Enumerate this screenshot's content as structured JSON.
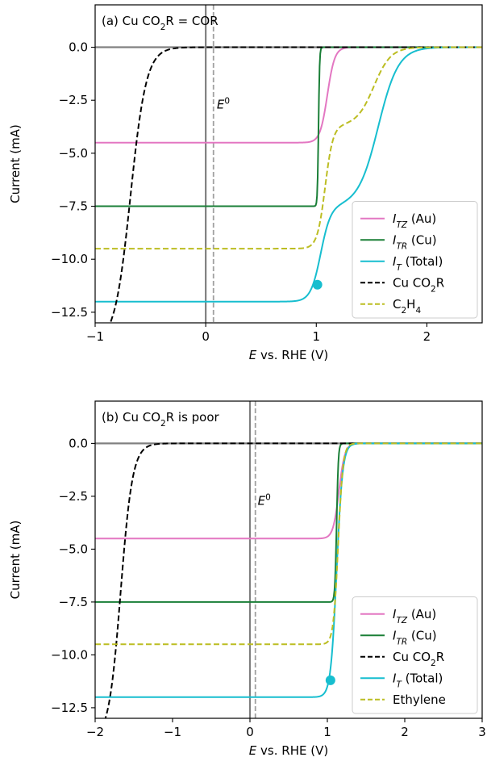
{
  "chart_data": [
    {
      "type": "line",
      "panel_label": "(a) Cu CO",
      "panel_label_sub": "2",
      "panel_label_tail": "R = COR",
      "xlabel_italic": "E",
      "xlabel_rest": " vs. RHE (V)",
      "ylabel": "Current (mA)",
      "xlim": [
        -1,
        2.5
      ],
      "ylim": [
        -13,
        2
      ],
      "xticks": [
        -1,
        0,
        1,
        2
      ],
      "xtick_labels": [
        "−1",
        "0",
        "1",
        "2"
      ],
      "yticks": [
        0.0,
        -2.5,
        -5.0,
        -7.5,
        -10.0,
        -12.5
      ],
      "ytick_labels": [
        "0.0",
        "−2.5",
        "−5.0",
        "−7.5",
        "−10.0",
        "−12.5"
      ],
      "e0_label": "E",
      "e0_sup": "0",
      "e0_x": 0.07,
      "e0_label_pos": [
        0.1,
        -2.9
      ],
      "grid": false,
      "legend_placement": "lower-right",
      "colors": {
        "tz": "#e377c2",
        "tr": "#1a7f37",
        "total": "#17becf",
        "cu": "#000000",
        "prod": "#bcbd22"
      },
      "series": [
        {
          "key": "tz",
          "name_italic": "I",
          "name_sub": "TZ",
          "name_tail": " (Au)",
          "dash": false,
          "lim": -4.5,
          "E": 1.1,
          "k": 30
        },
        {
          "key": "tr",
          "name_italic": "I",
          "name_sub": "TR",
          "name_tail": " (Cu)",
          "dash": false,
          "lim": -7.5,
          "E": 1.02,
          "k": 200
        },
        {
          "key": "total",
          "name_italic": "I",
          "name_sub": "T",
          "name_tail": " (Total)",
          "dash": false,
          "steps": [
            {
              "lim": -4.5,
              "E": 1.04,
              "k": 22
            },
            {
              "lim": -7.5,
              "E": 1.56,
              "k": 11
            }
          ]
        },
        {
          "key": "cu",
          "name_pre": "Cu CO",
          "name_sub2": "2",
          "name_tail": "R",
          "dash": true,
          "lim": -14,
          "E": -0.68,
          "k": 14
        },
        {
          "key": "prod",
          "name_pre": "C",
          "name_sub2": "2",
          "name_tail": "H",
          "name_sub3": "4",
          "dash": true,
          "steps": [
            {
              "lim": -5.8,
              "E": 1.08,
              "k": 28
            },
            {
              "lim": -3.7,
              "E": 1.52,
              "k": 13
            }
          ]
        }
      ],
      "legend_order": [
        "tz",
        "tr",
        "total",
        "cu",
        "prod"
      ],
      "marker": {
        "x": 1.01,
        "y": -11.2
      }
    },
    {
      "type": "line",
      "panel_label": "(b) Cu CO",
      "panel_label_sub": "2",
      "panel_label_tail": "R is poor",
      "xlabel_italic": "E",
      "xlabel_rest": " vs. RHE (V)",
      "ylabel": "Current (mA)",
      "xlim": [
        -2,
        3
      ],
      "ylim": [
        -13,
        2
      ],
      "xticks": [
        -2,
        -1,
        0,
        1,
        2,
        3
      ],
      "xtick_labels": [
        "−2",
        "−1",
        "0",
        "1",
        "2",
        "3"
      ],
      "yticks": [
        0.0,
        -2.5,
        -5.0,
        -7.5,
        -10.0,
        -12.5
      ],
      "ytick_labels": [
        "0.0",
        "−2.5",
        "−5.0",
        "−7.5",
        "−10.0",
        "−12.5"
      ],
      "e0_label": "E",
      "e0_sup": "0",
      "e0_x": 0.07,
      "e0_label_pos": [
        0.1,
        -2.9
      ],
      "grid": false,
      "legend_placement": "lower-right",
      "colors": {
        "tz": "#e377c2",
        "tr": "#1a7f37",
        "total": "#17becf",
        "cu": "#000000",
        "prod": "#bcbd22"
      },
      "series": [
        {
          "key": "tz",
          "name_italic": "I",
          "name_sub": "TZ",
          "name_tail": " (Au)",
          "dash": false,
          "lim": -4.5,
          "E": 1.15,
          "k": 26
        },
        {
          "key": "tr",
          "name_italic": "I",
          "name_sub": "TR",
          "name_tail": " (Cu)",
          "dash": false,
          "lim": -7.5,
          "E": 1.12,
          "k": 90
        },
        {
          "key": "cu",
          "name_pre": "Cu CO",
          "name_sub2": "2",
          "name_tail": "R",
          "dash": true,
          "lim": -14,
          "E": -1.67,
          "k": 13
        },
        {
          "key": "total",
          "name_italic": "I",
          "name_sub": "T",
          "name_tail": " (Total)",
          "dash": false,
          "lim": -12,
          "E": 1.12,
          "k": 26
        },
        {
          "key": "prod",
          "name_pre": "Ethylene",
          "dash": true,
          "lim": -9.5,
          "E": 1.14,
          "k": 32
        }
      ],
      "legend_order": [
        "tz",
        "tr",
        "cu",
        "total",
        "prod"
      ],
      "marker": {
        "x": 1.04,
        "y": -11.2
      }
    }
  ]
}
